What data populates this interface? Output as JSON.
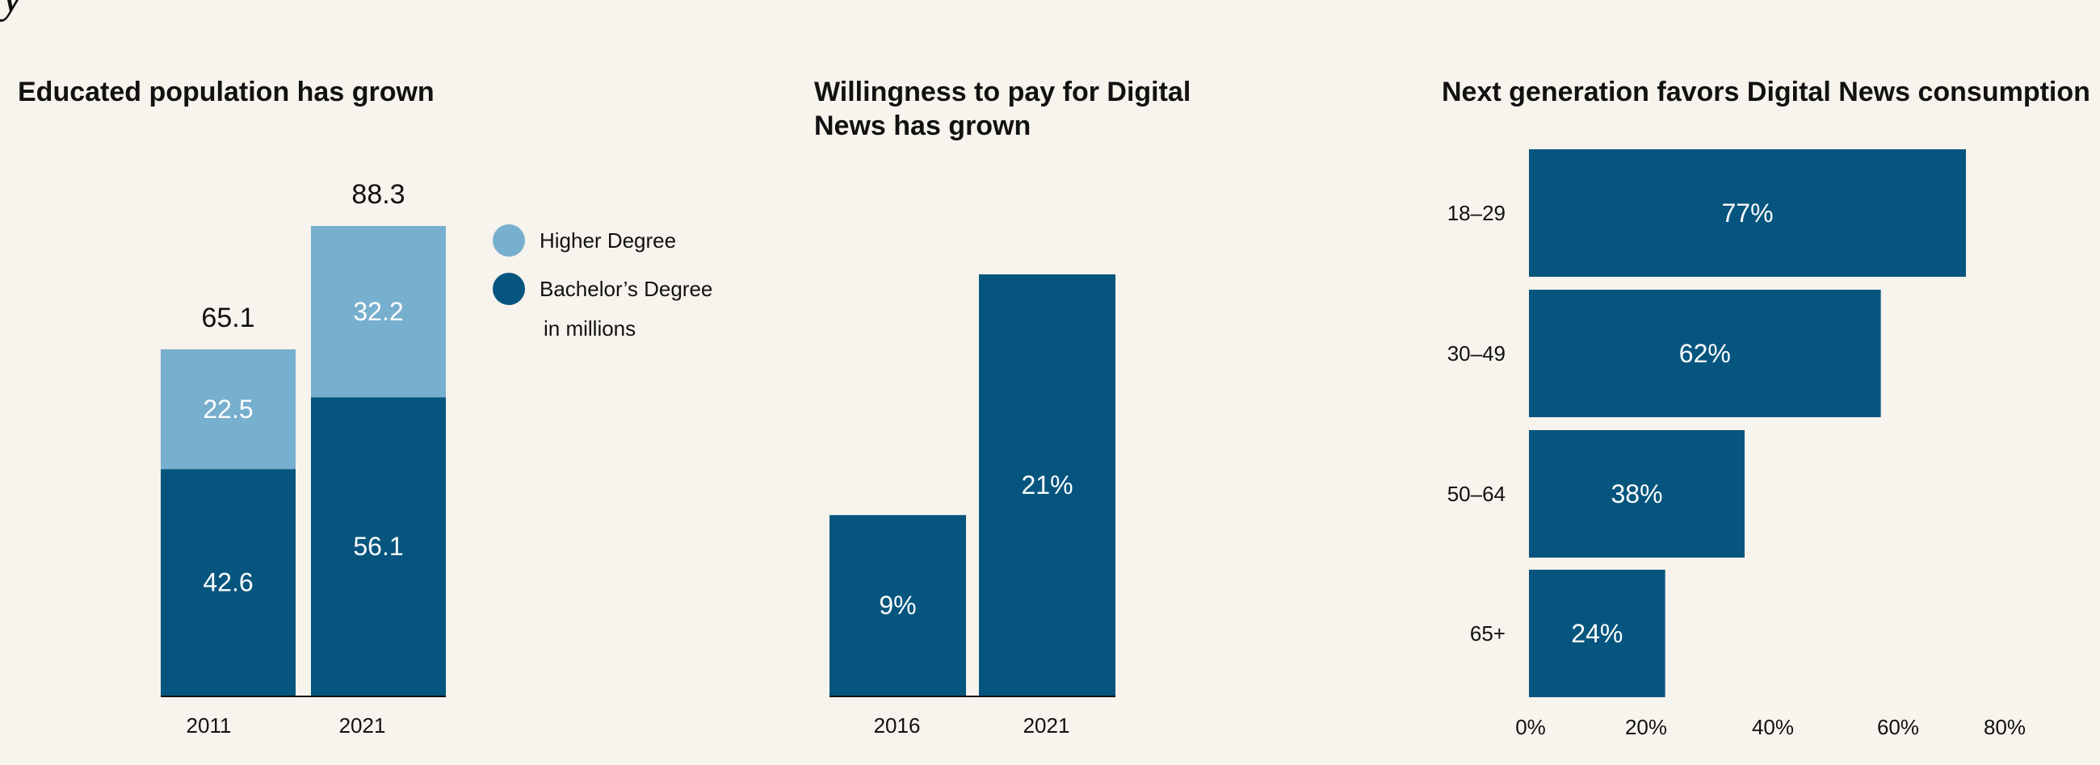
{
  "colors": {
    "dark": "#06557e",
    "light": "#77afce",
    "background": "#f7f3ed",
    "text": "#111111",
    "bar_label": "#ffffff"
  },
  "chart_data": [
    {
      "type": "bar",
      "stacked": true,
      "title": "Educated population has grown",
      "categories": [
        "2011",
        "2021"
      ],
      "series": [
        {
          "name": "Bachelor’s Degree",
          "values": [
            42.6,
            56.1
          ]
        },
        {
          "name": "Higher Degree",
          "values": [
            22.5,
            32.2
          ]
        }
      ],
      "totals": [
        "65.1",
        "88.3"
      ],
      "labels": {
        "bachelor": [
          "42.6",
          "56.1"
        ],
        "higher": [
          "22.5",
          "32.2"
        ]
      },
      "unit_note": "in millions",
      "ylim": [
        0,
        88.3
      ],
      "legend_position": "right"
    },
    {
      "type": "bar",
      "title_lines": [
        "Willingness to pay for Digital",
        "News has grown"
      ],
      "categories": [
        "2016",
        "2021"
      ],
      "values": [
        9,
        21
      ],
      "labels": [
        "9%",
        "21%"
      ],
      "ylim": [
        0,
        21
      ]
    },
    {
      "type": "bar",
      "orientation": "horizontal",
      "title": "Next generation favors Digital News consumption",
      "categories": [
        "18–29",
        "30–49",
        "50–64",
        "65+"
      ],
      "values": [
        77,
        62,
        38,
        24
      ],
      "labels": [
        "77%",
        "62%",
        "38%",
        "24%"
      ],
      "xticks": [
        "0%",
        "20%",
        "40%",
        "60%",
        "80%"
      ],
      "xlim": [
        0,
        80
      ]
    }
  ]
}
